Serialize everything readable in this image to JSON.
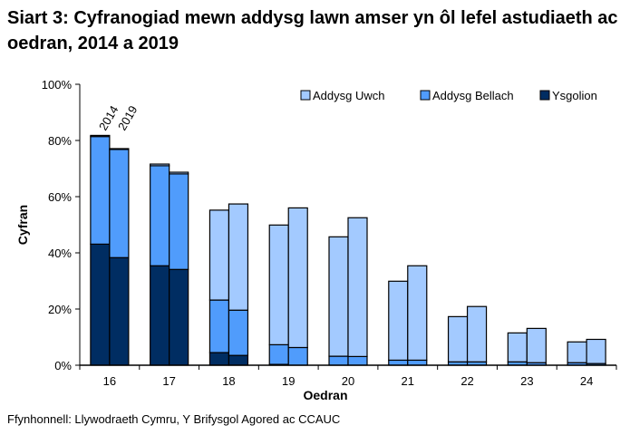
{
  "chart_data": {
    "type": "bar",
    "stacked": true,
    "title": "Siart 3: Cyfranogiad mewn addysg lawn amser yn ôl lefel astudiaeth ac oedran, 2014 a 2019",
    "xlabel": "Oedran",
    "ylabel": "Cyfran",
    "ylim": [
      0,
      100
    ],
    "yticks": [
      "0%",
      "20%",
      "40%",
      "60%",
      "80%",
      "100%"
    ],
    "categories": [
      "16",
      "17",
      "18",
      "19",
      "20",
      "21",
      "22",
      "23",
      "24"
    ],
    "years": [
      "2014",
      "2019"
    ],
    "legend_position": "top-right",
    "series": [
      {
        "name": "Ysgolion",
        "color": "#002d62",
        "values_2014": [
          43.1,
          35.4,
          4.5,
          0.3,
          0,
          0,
          0,
          0,
          0
        ],
        "values_2019": [
          38.3,
          34.1,
          3.5,
          0,
          0,
          0,
          0,
          0,
          0
        ]
      },
      {
        "name": "Addysg Bellach",
        "color": "#509cfc",
        "values_2014": [
          38.3,
          35.6,
          18.7,
          7.0,
          3.2,
          1.8,
          1.2,
          1.2,
          0.9
        ],
        "values_2019": [
          38.5,
          34.0,
          16.1,
          6.3,
          3.1,
          1.8,
          1.2,
          0.9,
          0.6
        ]
      },
      {
        "name": "Addysg Uwch",
        "color": "#a3caff",
        "values_2014": [
          0.4,
          0.6,
          32.0,
          42.6,
          42.5,
          28.1,
          16.1,
          10.3,
          7.4
        ],
        "values_2019": [
          0.3,
          0.6,
          37.8,
          49.7,
          49.4,
          33.6,
          19.7,
          12.2,
          8.6
        ]
      }
    ],
    "legend_order": [
      "Addysg Uwch",
      "Addysg Bellach",
      "Ysgolion"
    ]
  },
  "source": "Ffynhonnell: Llywodraeth Cymru, Y Brifysgol Agored ac CCAUC"
}
